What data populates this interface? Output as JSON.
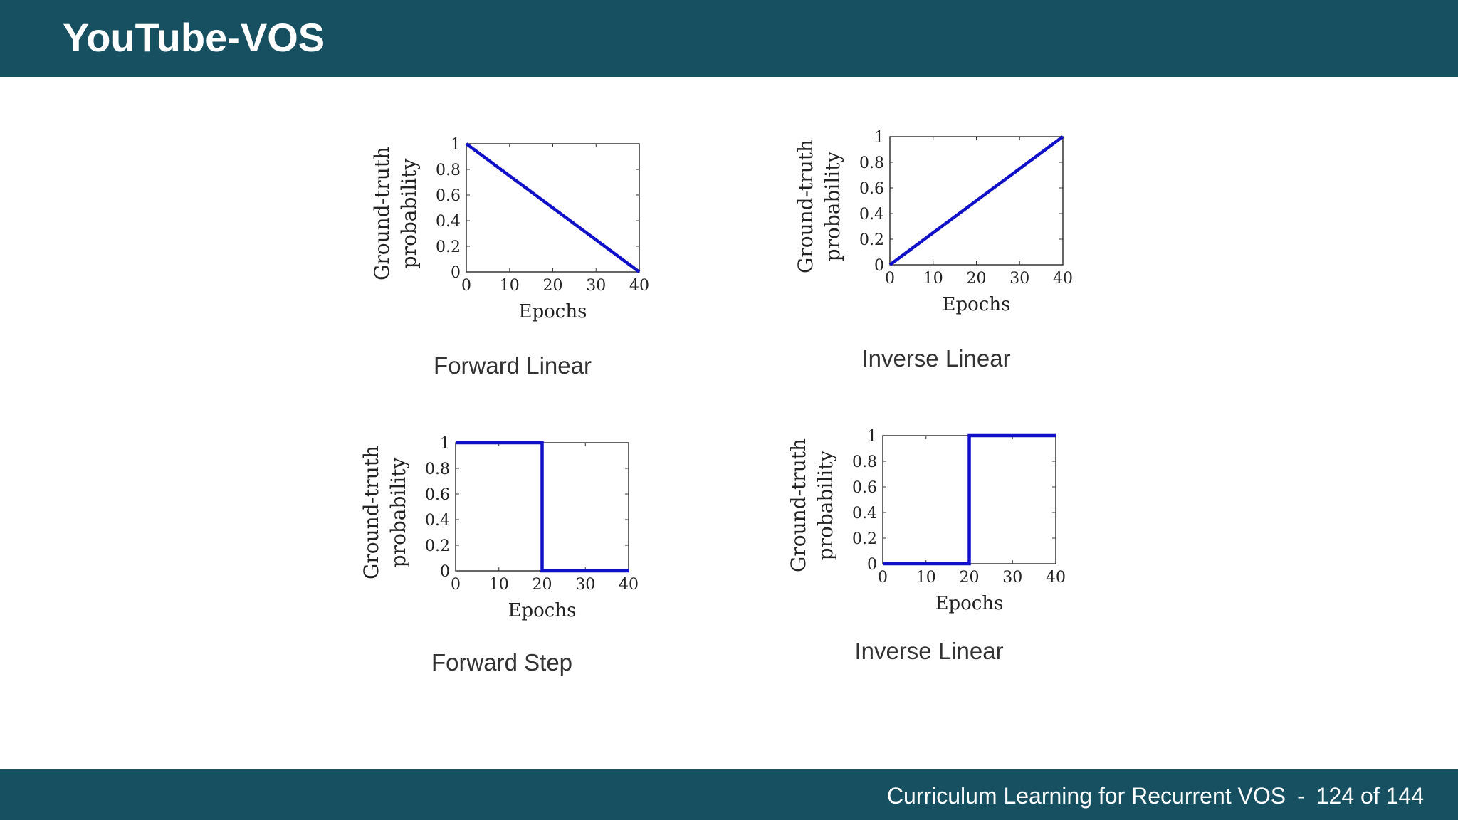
{
  "slide": {
    "title": "YouTube-VOS",
    "footer": {
      "text": "Curriculum Learning for Recurrent VOS",
      "separator": "-",
      "page": "124 of 144"
    }
  },
  "colors": {
    "header_bg": "#175060",
    "line": "#1010c8"
  },
  "chart_data": [
    {
      "type": "line",
      "caption": "Forward Linear",
      "xlabel": "Epochs",
      "ylabel": [
        "Ground-truth",
        "probability"
      ],
      "xlim": [
        0,
        40
      ],
      "ylim": [
        0,
        1
      ],
      "xticks": [
        0,
        10,
        20,
        30,
        40
      ],
      "yticks": [
        0,
        0.2,
        0.4,
        0.6,
        0.8,
        1
      ],
      "yticklabels": [
        "0",
        "0.2",
        "0.4",
        "0.6",
        "0.8",
        "1"
      ],
      "grid": false,
      "series": [
        {
          "x": [
            0,
            40
          ],
          "y": [
            1,
            0
          ]
        }
      ]
    },
    {
      "type": "line",
      "caption": "Inverse Linear",
      "xlabel": "Epochs",
      "ylabel": [
        "Ground-truth",
        "probability"
      ],
      "xlim": [
        0,
        40
      ],
      "ylim": [
        0,
        1
      ],
      "xticks": [
        0,
        10,
        20,
        30,
        40
      ],
      "yticks": [
        0,
        0.2,
        0.4,
        0.6,
        0.8,
        1
      ],
      "yticklabels": [
        "0",
        "0.2",
        "0.4",
        "0.6",
        "0.8",
        "1"
      ],
      "grid": false,
      "series": [
        {
          "x": [
            0,
            40
          ],
          "y": [
            0,
            1
          ]
        }
      ]
    },
    {
      "type": "line",
      "caption": "Forward Step",
      "xlabel": "Epochs",
      "ylabel": [
        "Ground-truth",
        "probability"
      ],
      "xlim": [
        0,
        40
      ],
      "ylim": [
        0,
        1
      ],
      "xticks": [
        0,
        10,
        20,
        30,
        40
      ],
      "yticks": [
        0,
        0.2,
        0.4,
        0.6,
        0.8,
        1
      ],
      "yticklabels": [
        "0",
        "0.2",
        "0.4",
        "0.6",
        "0.8",
        "1"
      ],
      "grid": false,
      "series": [
        {
          "x": [
            0,
            20,
            20,
            40
          ],
          "y": [
            1,
            1,
            0,
            0
          ]
        }
      ]
    },
    {
      "type": "line",
      "caption": "Inverse Linear",
      "xlabel": "Epochs",
      "ylabel": [
        "Ground-truth",
        "probability"
      ],
      "xlim": [
        0,
        40
      ],
      "ylim": [
        0,
        1
      ],
      "xticks": [
        0,
        10,
        20,
        30,
        40
      ],
      "yticks": [
        0,
        0.2,
        0.4,
        0.6,
        0.8,
        1
      ],
      "yticklabels": [
        "0",
        "0.2",
        "0.4",
        "0.6",
        "0.8",
        "1"
      ],
      "grid": false,
      "series": [
        {
          "x": [
            0,
            20,
            20,
            40
          ],
          "y": [
            0,
            0,
            1,
            1
          ]
        }
      ]
    }
  ]
}
